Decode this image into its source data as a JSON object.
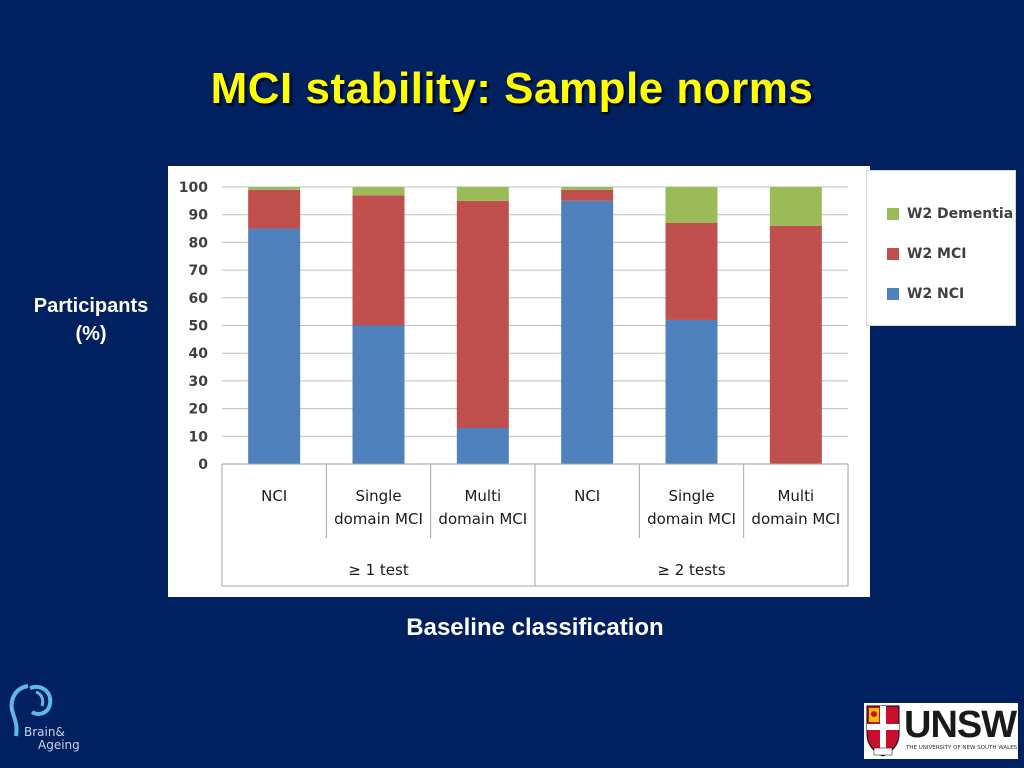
{
  "slide": {
    "title": "MCI stability: Sample norms",
    "y_axis_label_line1": "Participants",
    "y_axis_label_line2": "(%)",
    "x_axis_label": "Baseline classification"
  },
  "logos": {
    "brand_line1": "Brain&",
    "brand_line2": "Ageing",
    "unsw_name": "UNSW",
    "unsw_subtitle": "THE UNIVERSITY OF NEW SOUTH WALES"
  },
  "chart_data": {
    "type": "bar",
    "stacked": true,
    "ylim": [
      0,
      100
    ],
    "yticks": [
      0,
      10,
      20,
      30,
      40,
      50,
      60,
      70,
      80,
      90,
      100
    ],
    "grid": true,
    "legend_position": "right",
    "categories": [
      [
        "NCI"
      ],
      [
        "Single",
        "domain MCI"
      ],
      [
        "Multi",
        "domain MCI"
      ],
      [
        "NCI"
      ],
      [
        "Single",
        "domain MCI"
      ],
      [
        "Multi",
        "domain MCI"
      ]
    ],
    "groups": [
      {
        "label": "≥ 1 test",
        "span": 3
      },
      {
        "label": "≥ 2 tests",
        "span": 3
      }
    ],
    "series": [
      {
        "name": "W2 NCI",
        "color": "#4F81BD",
        "values": [
          85,
          50,
          13,
          95,
          52,
          0
        ]
      },
      {
        "name": "W2 MCI",
        "color": "#C0504D",
        "values": [
          14,
          47,
          82,
          4,
          35,
          86
        ]
      },
      {
        "name": "W2 Dementia",
        "color": "#9BBB59",
        "values": [
          1,
          3,
          5,
          1,
          13,
          14
        ]
      }
    ]
  }
}
